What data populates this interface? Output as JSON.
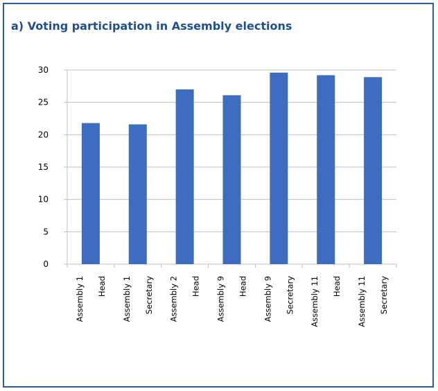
{
  "panel": {
    "title": "a) Voting participation in Assembly elections"
  },
  "colors": {
    "border": "#2a5ca0",
    "bar": "#3d6cc0",
    "title": "#1f4f93",
    "grid": "#bfbfbf"
  },
  "chart_data": {
    "type": "bar",
    "title": "a) Voting participation in Assembly elections",
    "xlabel": "",
    "ylabel": "",
    "ylim": [
      0,
      30
    ],
    "yticks": [
      0,
      5,
      10,
      15,
      20,
      25,
      30
    ],
    "grid": true,
    "legend": "none",
    "categories": [
      [
        "Assembly 1",
        "Head"
      ],
      [
        "Assembly 1",
        "Secretary"
      ],
      [
        "Assembly 2",
        "Head"
      ],
      [
        "Assembly 9",
        "Head"
      ],
      [
        "Assembly 9",
        "Secretary"
      ],
      [
        "Assembly 11",
        "Head"
      ],
      [
        "Assembly 11",
        "Secretary"
      ]
    ],
    "values": [
      21.8,
      21.6,
      27.0,
      26.1,
      29.6,
      29.2,
      28.9
    ]
  }
}
